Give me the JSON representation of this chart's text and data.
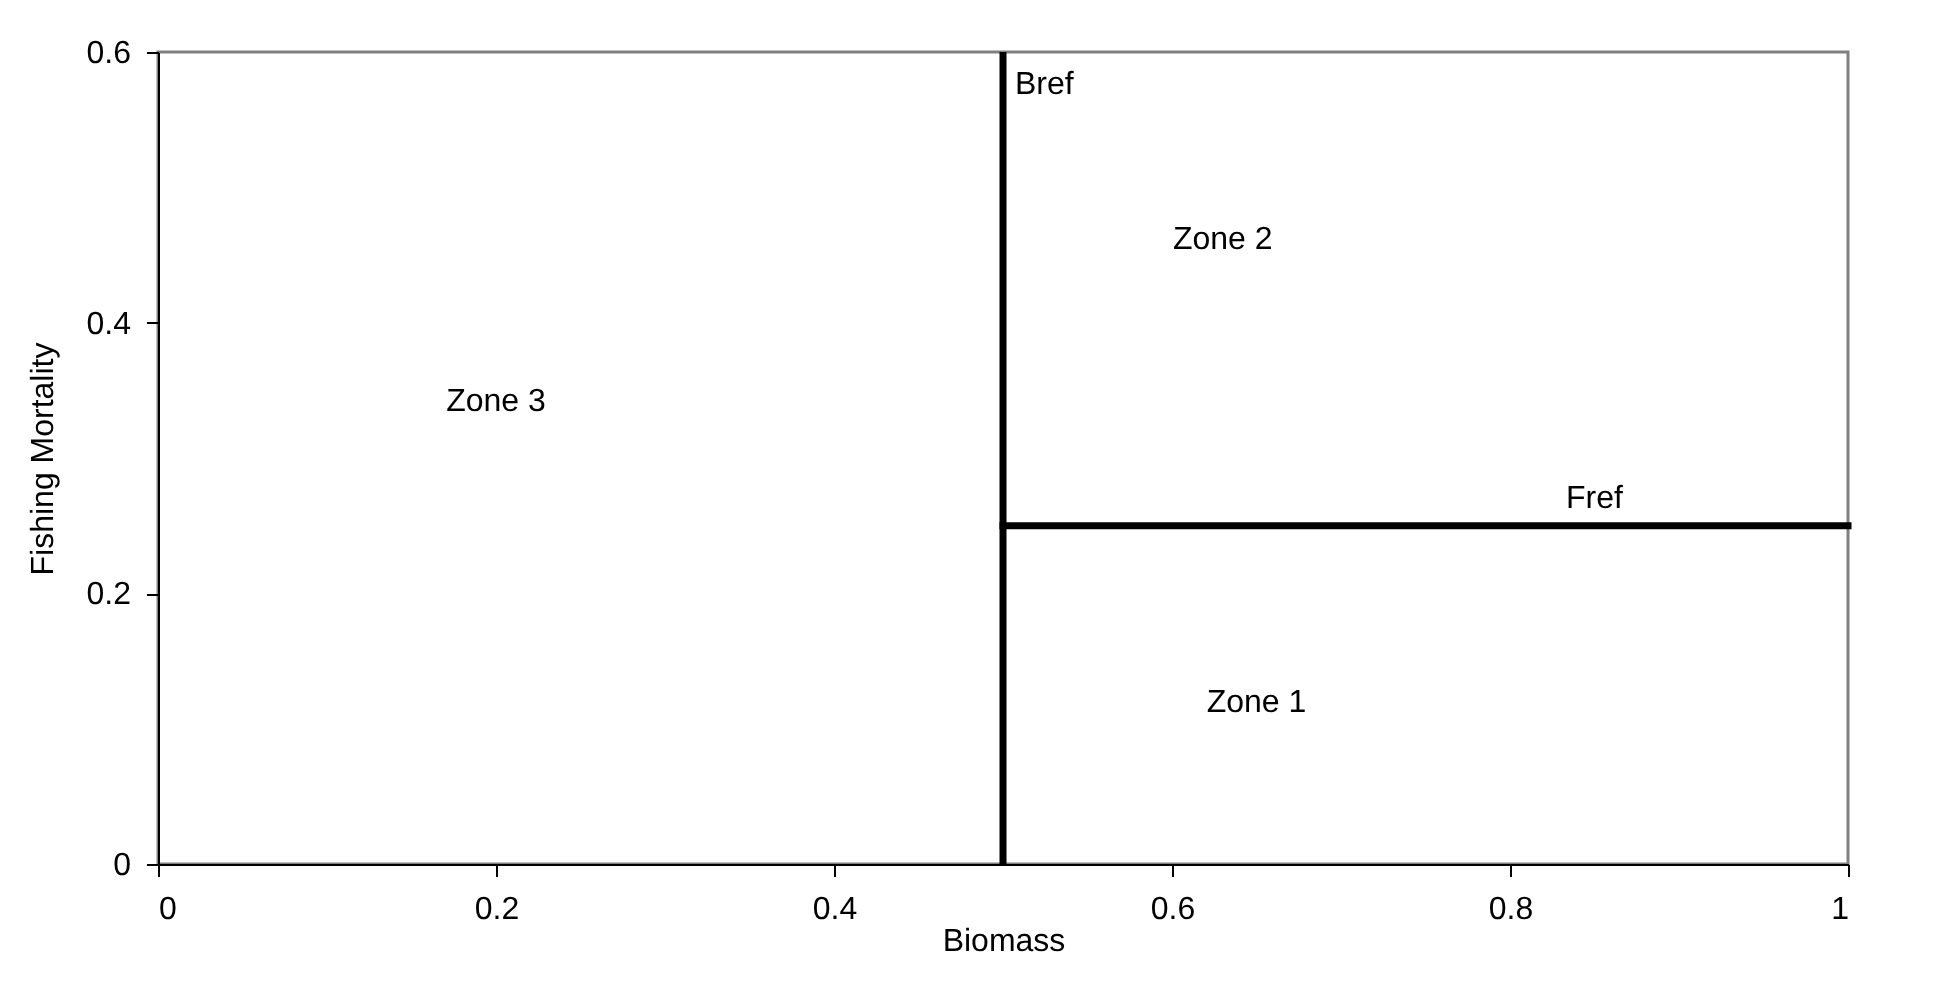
{
  "chart_data": {
    "type": "line",
    "xlabel": "Biomass",
    "ylabel": "Fishing Mortality",
    "xlim": [
      0,
      1
    ],
    "xticks": [
      0,
      0.2,
      0.4,
      0.6,
      0.8,
      1
    ],
    "ylim": [
      0,
      0.6
    ],
    "yticks": [
      0,
      0.2,
      0.4,
      0.6
    ],
    "grid": false,
    "marker": "none",
    "line_style": "solid",
    "series": [
      {
        "name": "Fref",
        "color": "#000000",
        "x": [
          0.5,
          1
        ],
        "values": [
          0.25,
          0.25
        ]
      }
    ],
    "ref_lines": [
      {
        "axis": "x",
        "value": 0.5,
        "label": "Bref",
        "color": "#000000",
        "line_style": "solid"
      }
    ],
    "annotations": [
      "Zone 3",
      "Zone 2",
      "Zone 1"
    ]
  }
}
